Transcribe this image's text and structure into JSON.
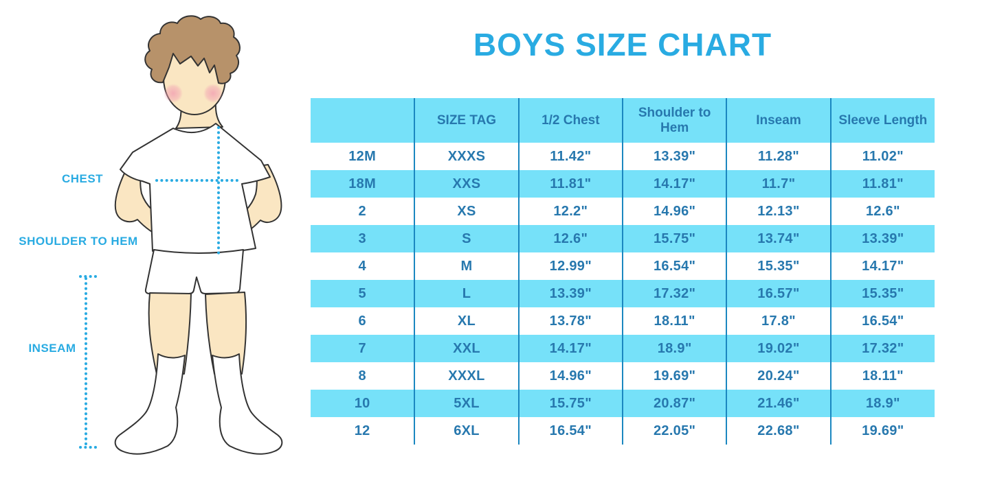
{
  "title": "BOYS SIZE CHART",
  "figure": {
    "labels": {
      "chest": "CHEST",
      "shoulder_to_hem": "SHOULDER TO HEM",
      "inseam": "INSEAM"
    }
  },
  "chart_data": {
    "type": "table",
    "title": "BOYS SIZE CHART",
    "columns": [
      "",
      "SIZE TAG",
      "1/2 Chest",
      "Shoulder to Hem",
      "Inseam",
      "Sleeve Length"
    ],
    "rows": [
      [
        "12M",
        "XXXS",
        "11.42\"",
        "13.39\"",
        "11.28\"",
        "11.02\""
      ],
      [
        "18M",
        "XXS",
        "11.81\"",
        "14.17\"",
        "11.7\"",
        "11.81\""
      ],
      [
        "2",
        "XS",
        "12.2\"",
        "14.96\"",
        "12.13\"",
        "12.6\""
      ],
      [
        "3",
        "S",
        "12.6\"",
        "15.75\"",
        "13.74\"",
        "13.39\""
      ],
      [
        "4",
        "M",
        "12.99\"",
        "16.54\"",
        "15.35\"",
        "14.17\""
      ],
      [
        "5",
        "L",
        "13.39\"",
        "17.32\"",
        "16.57\"",
        "15.35\""
      ],
      [
        "6",
        "XL",
        "13.78\"",
        "18.11\"",
        "17.8\"",
        "16.54\""
      ],
      [
        "7",
        "XXL",
        "14.17\"",
        "18.9\"",
        "19.02\"",
        "17.32\""
      ],
      [
        "8",
        "XXXL",
        "14.96\"",
        "19.69\"",
        "20.24\"",
        "18.11\""
      ],
      [
        "10",
        "5XL",
        "15.75\"",
        "20.87\"",
        "21.46\"",
        "18.9\""
      ],
      [
        "12",
        "6XL",
        "16.54\"",
        "22.05\"",
        "22.68\"",
        "19.69\""
      ]
    ],
    "row_striping": "header and even data rows light blue, odd data rows white"
  },
  "colors": {
    "accent": "#29ABE2",
    "row_highlight": "#76E1F9",
    "table_text": "#2778AE",
    "divider": "#1B87C0",
    "skin": "#FAE6C2",
    "hair": "#B7926A",
    "outline": "#333333",
    "blush": "#F2A3B3"
  }
}
